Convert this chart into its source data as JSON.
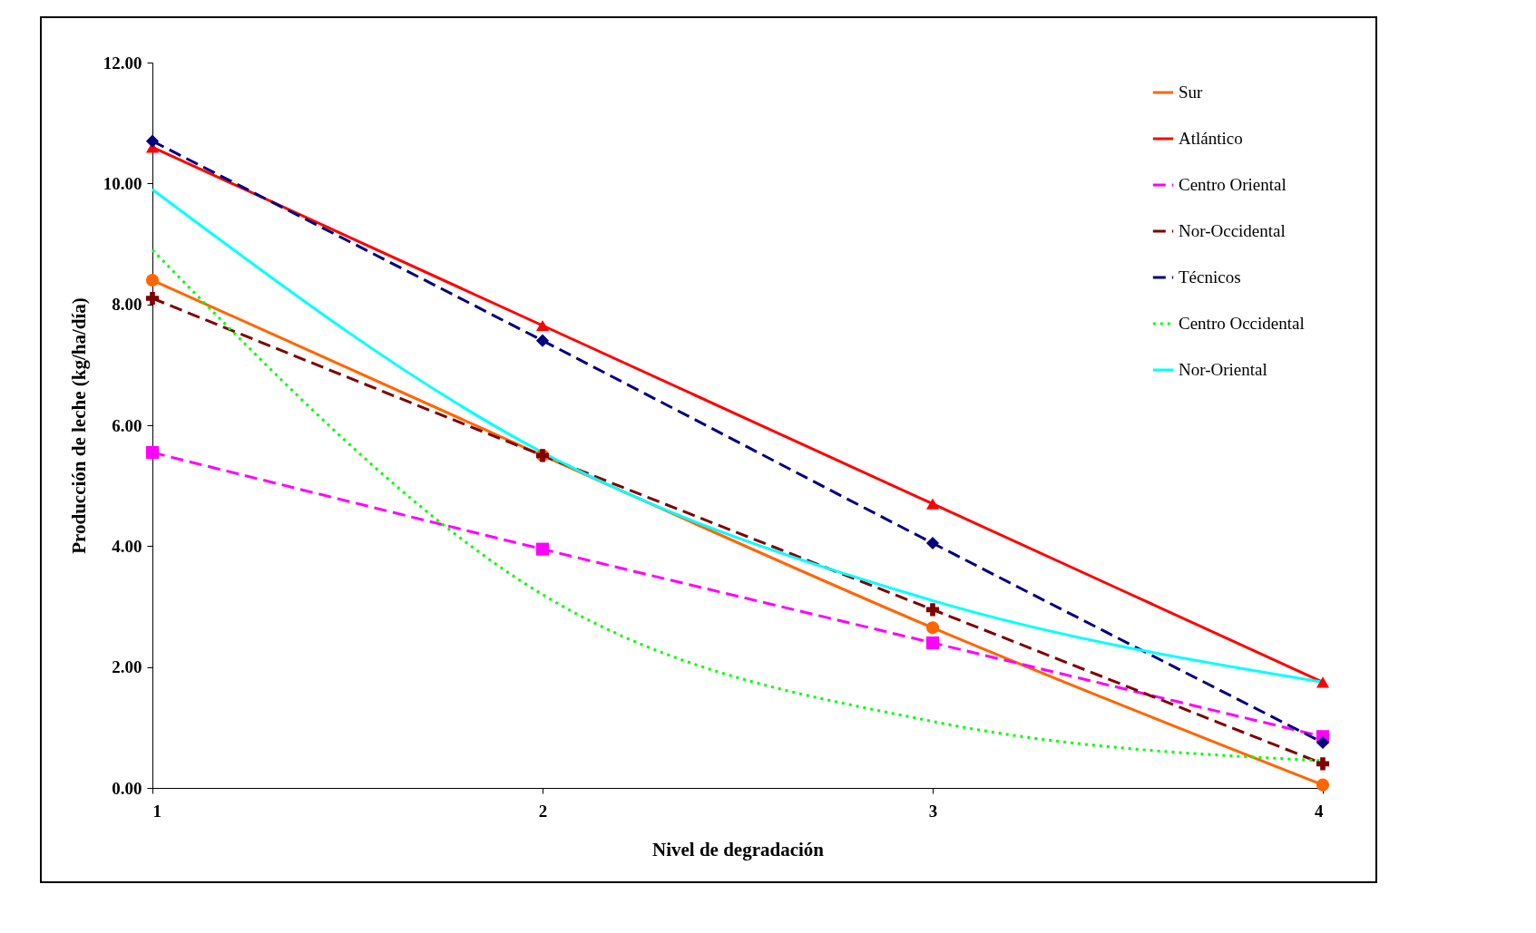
{
  "chart_data": {
    "type": "line",
    "xlabel": "Nivel de degradación",
    "ylabel": "Producción de leche (kg/ha/día)",
    "x": [
      1,
      2,
      3,
      4
    ],
    "xlim": [
      1,
      4
    ],
    "xticks": [
      1,
      2,
      3,
      4
    ],
    "ylim": [
      0,
      12
    ],
    "yticks": [
      {
        "value": 0,
        "label": "0.00"
      },
      {
        "value": 2,
        "label": "2.00"
      },
      {
        "value": 4,
        "label": "4.00"
      },
      {
        "value": 6,
        "label": "6.00"
      },
      {
        "value": 8,
        "label": "8.00"
      },
      {
        "value": 10,
        "label": "10.00"
      },
      {
        "value": 12,
        "label": "12.00"
      }
    ],
    "grid": false,
    "legend": "top right",
    "series": [
      {
        "name": "Sur",
        "color": "#ff6600",
        "marker": "circle",
        "line_style": "solid",
        "values": [
          8.4,
          5.5,
          2.65,
          0.05
        ]
      },
      {
        "name": "Atlántico",
        "color": "#ff0000",
        "marker": "triangle",
        "line_style": "solid",
        "values": [
          10.6,
          7.65,
          4.7,
          1.75
        ]
      },
      {
        "name": "Centro Oriental",
        "color": "#ff00ff",
        "marker": "square",
        "line_style": "dashed",
        "values": [
          5.55,
          3.95,
          2.4,
          0.85
        ]
      },
      {
        "name": "Nor-Occidental",
        "color": "#800000",
        "marker": "cross",
        "line_style": "dashed",
        "values": [
          8.1,
          5.5,
          2.95,
          0.4
        ]
      },
      {
        "name": "Técnicos",
        "color": "#000080",
        "marker": "diamond",
        "line_style": "dashed",
        "values": [
          10.7,
          7.4,
          4.05,
          0.75
        ]
      },
      {
        "name": "Centro Occidental",
        "color": "#00ff00",
        "marker": "none",
        "line_style": "dotted",
        "values": [
          8.9,
          3.2,
          1.1,
          0.45
        ]
      },
      {
        "name": "Nor-Oriental",
        "color": "#00ffff",
        "marker": "none",
        "line_style": "solid",
        "values": [
          9.9,
          5.55,
          3.1,
          1.75
        ]
      }
    ]
  }
}
